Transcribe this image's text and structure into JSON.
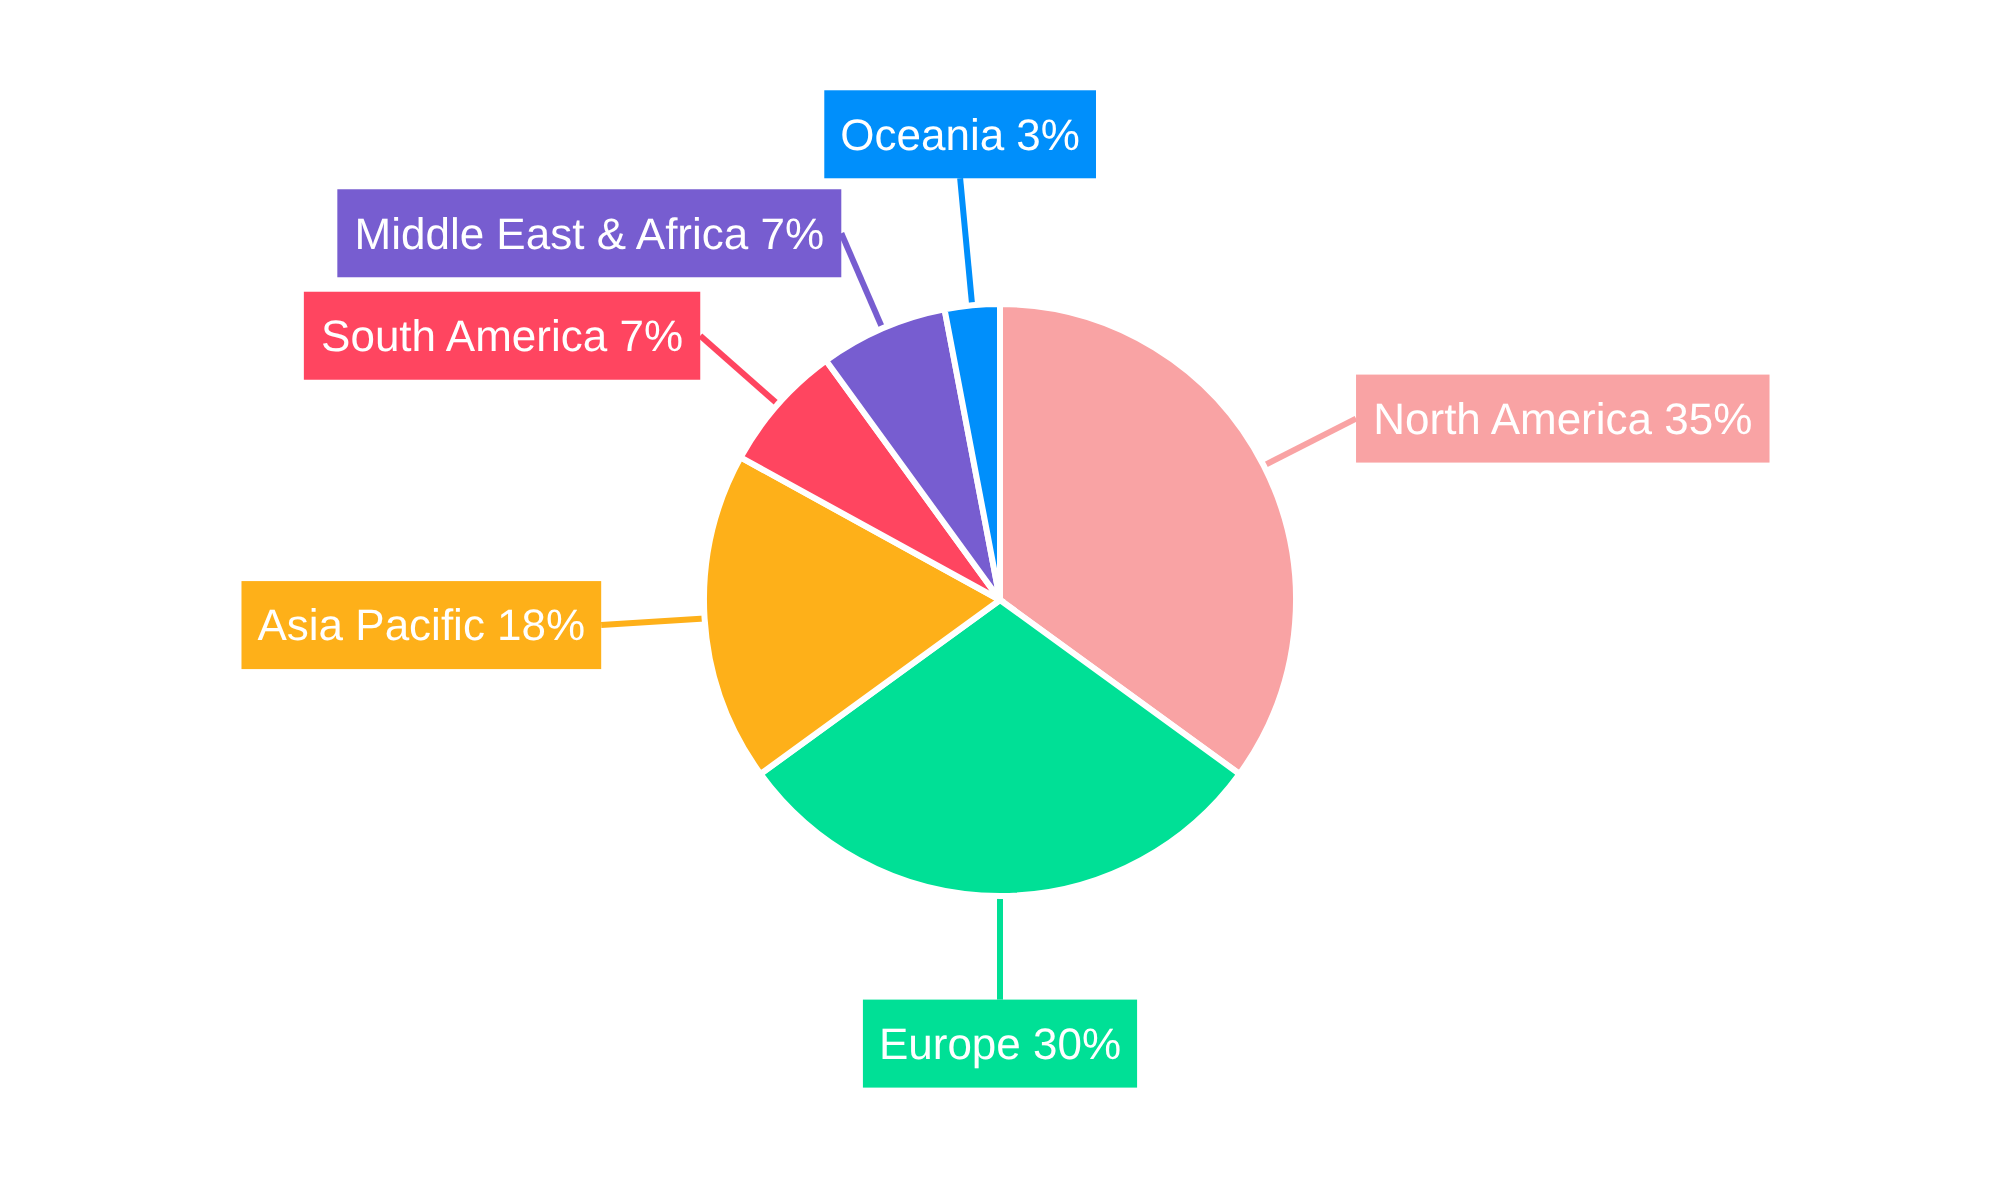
{
  "chart_data": {
    "type": "pie",
    "categories": [
      "North America",
      "Europe",
      "Asia Pacific",
      "South America",
      "Middle East & Africa",
      "Oceania"
    ],
    "values": [
      35,
      30,
      18,
      7,
      7,
      3
    ],
    "value_labels": [
      "35%",
      "30%",
      "18%",
      "7%",
      "7%",
      "3%"
    ],
    "colors": [
      "#f9a3a4",
      "#00e096",
      "#feb019",
      "#ff4560",
      "#775dd0",
      "#008ffb"
    ]
  }
}
